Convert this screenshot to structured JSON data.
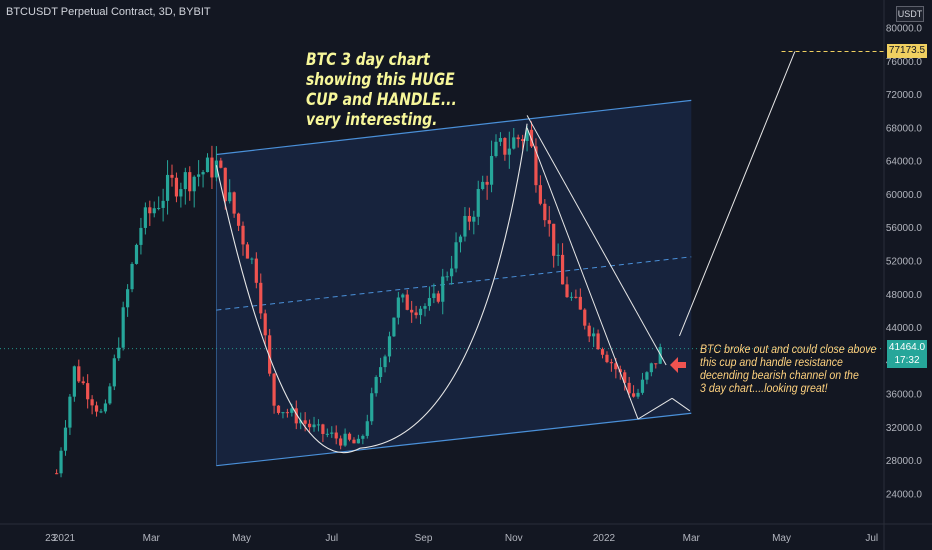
{
  "symbol_title": "BTCUSDT Perpetual Contract, 3D, BYBIT",
  "unit": "USDT",
  "annotation_main": [
    "BTC 3 day chart",
    "showing this HUGE",
    "CUP and HANDLE...",
    "very interesting."
  ],
  "annotation_side": [
    "BTC broke out and could close above",
    "this cup and handle resistance",
    " decending bearish channel on the",
    "3 day chart....looking great!"
  ],
  "last_price": "41464.0",
  "countdown": "17:32",
  "target_price": "77173.5",
  "colors": {
    "up": "#26a69a",
    "down": "#ef5350",
    "channel": "#4a90d9",
    "annotation": "#f7f79a",
    "target": "#f0d060"
  },
  "chart_data": {
    "type": "candlestick",
    "y_ticks": [
      "80000.0",
      "76000.0",
      "72000.0",
      "68000.0",
      "64000.0",
      "60000.0",
      "56000.0",
      "52000.0",
      "48000.0",
      "44000.0",
      "40000.0",
      "36000.0",
      "32000.0",
      "28000.0",
      "24000.0"
    ],
    "x_ticks": [
      "23",
      "2021",
      "Mar",
      "May",
      "Jul",
      "Sep",
      "Nov",
      "2022",
      "Mar",
      "May",
      "Jul"
    ],
    "ylim": [
      20500,
      82500
    ],
    "approx_close_path": [
      [
        "2020-12-27",
        26500
      ],
      [
        "2021-01-08",
        39000
      ],
      [
        "2021-01-28",
        33000
      ],
      [
        "2021-02-21",
        56000
      ],
      [
        "2021-03-13",
        61000
      ],
      [
        "2021-04-14",
        63500
      ],
      [
        "2021-05-12",
        50000
      ],
      [
        "2021-05-22",
        35000
      ],
      [
        "2021-06-22",
        31500
      ],
      [
        "2021-07-20",
        29800
      ],
      [
        "2021-08-14",
        47000
      ],
      [
        "2021-09-07",
        46500
      ],
      [
        "2021-10-20",
        65000
      ],
      [
        "2021-11-10",
        67500
      ],
      [
        "2021-12-04",
        49000
      ],
      [
        "2022-01-22",
        35500
      ],
      [
        "2022-02-09",
        41464
      ]
    ],
    "channel": {
      "upper": [
        [
          "2021-04-14",
          64800
        ],
        [
          "2022-03-01",
          71300
        ]
      ],
      "lower": [
        [
          "2021-04-14",
          27400
        ],
        [
          "2022-03-01",
          33700
        ]
      ],
      "mid": [
        [
          "2021-04-14",
          46100
        ],
        [
          "2022-03-01",
          52500
        ]
      ]
    },
    "projection": {
      "from": [
        "2022-02-21",
        43000
      ],
      "to": [
        "2022-05-10",
        77173.5
      ]
    },
    "target_line": 77173.5
  }
}
